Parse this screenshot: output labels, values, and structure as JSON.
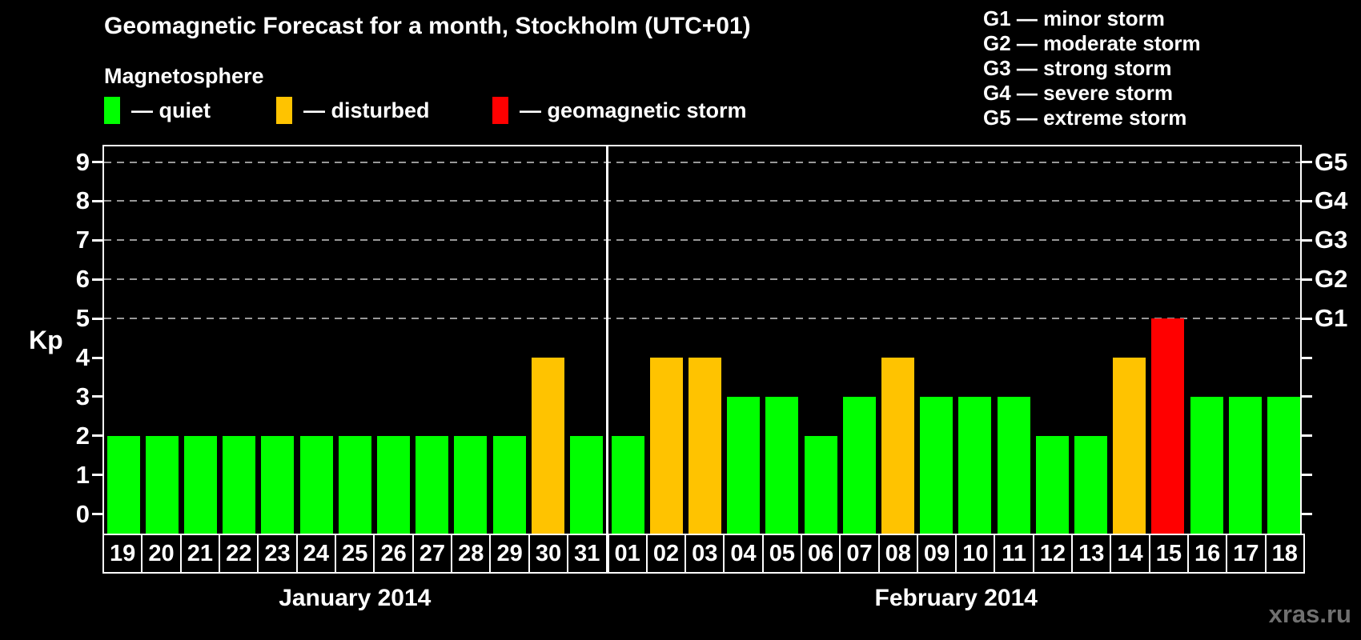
{
  "title": "Geomagnetic Forecast for a month, Stockholm (UTC+01)",
  "legend": {
    "title": "Magnetosphere",
    "items": [
      {
        "name": "quiet",
        "label": "— quiet",
        "color": "#00FF00"
      },
      {
        "name": "disturbed",
        "label": "— disturbed",
        "color": "#FFC300"
      },
      {
        "name": "storm",
        "label": "— geomagnetic storm",
        "color": "#FF0000"
      }
    ]
  },
  "g_legend": [
    "G1 — minor storm",
    "G2 — moderate storm",
    "G3 — strong storm",
    "G4 — severe storm",
    "G5 — extreme storm"
  ],
  "watermark": "xras.ru",
  "chart_data": {
    "type": "bar",
    "title": "Geomagnetic Forecast for a month, Stockholm (UTC+01)",
    "ylabel": "Kp",
    "ylim": [
      -0.5,
      9.4
    ],
    "yticks": [
      0,
      1,
      2,
      3,
      4,
      5,
      6,
      7,
      8,
      9
    ],
    "gridlines_at_kp": [
      5,
      6,
      7,
      8,
      9
    ],
    "grid": "dashed-horizontal-at-storm-levels",
    "legend_position": "top",
    "right_axis": [
      {
        "label": "G1",
        "kp": 5
      },
      {
        "label": "G2",
        "kp": 6
      },
      {
        "label": "G3",
        "kp": 7
      },
      {
        "label": "G4",
        "kp": 8
      },
      {
        "label": "G5",
        "kp": 9
      }
    ],
    "level_colors": {
      "quiet": "#00FF00",
      "disturbed": "#FFC300",
      "storm": "#FF0000"
    },
    "groups": [
      {
        "month": "January 2014",
        "bars": [
          {
            "day": "19",
            "kp": 2,
            "level": "quiet"
          },
          {
            "day": "20",
            "kp": 2,
            "level": "quiet"
          },
          {
            "day": "21",
            "kp": 2,
            "level": "quiet"
          },
          {
            "day": "22",
            "kp": 2,
            "level": "quiet"
          },
          {
            "day": "23",
            "kp": 2,
            "level": "quiet"
          },
          {
            "day": "24",
            "kp": 2,
            "level": "quiet"
          },
          {
            "day": "25",
            "kp": 2,
            "level": "quiet"
          },
          {
            "day": "26",
            "kp": 2,
            "level": "quiet"
          },
          {
            "day": "27",
            "kp": 2,
            "level": "quiet"
          },
          {
            "day": "28",
            "kp": 2,
            "level": "quiet"
          },
          {
            "day": "29",
            "kp": 2,
            "level": "quiet"
          },
          {
            "day": "30",
            "kp": 4,
            "level": "disturbed"
          },
          {
            "day": "31",
            "kp": 2,
            "level": "quiet"
          }
        ]
      },
      {
        "month": "February 2014",
        "bars": [
          {
            "day": "01",
            "kp": 2,
            "level": "quiet"
          },
          {
            "day": "02",
            "kp": 4,
            "level": "disturbed"
          },
          {
            "day": "03",
            "kp": 4,
            "level": "disturbed"
          },
          {
            "day": "04",
            "kp": 3,
            "level": "quiet"
          },
          {
            "day": "05",
            "kp": 3,
            "level": "quiet"
          },
          {
            "day": "06",
            "kp": 2,
            "level": "quiet"
          },
          {
            "day": "07",
            "kp": 3,
            "level": "quiet"
          },
          {
            "day": "08",
            "kp": 4,
            "level": "disturbed"
          },
          {
            "day": "09",
            "kp": 3,
            "level": "quiet"
          },
          {
            "day": "10",
            "kp": 3,
            "level": "quiet"
          },
          {
            "day": "11",
            "kp": 3,
            "level": "quiet"
          },
          {
            "day": "12",
            "kp": 2,
            "level": "quiet"
          },
          {
            "day": "13",
            "kp": 2,
            "level": "quiet"
          },
          {
            "day": "14",
            "kp": 4,
            "level": "disturbed"
          },
          {
            "day": "15",
            "kp": 5,
            "level": "storm"
          },
          {
            "day": "16",
            "kp": 3,
            "level": "quiet"
          },
          {
            "day": "17",
            "kp": 3,
            "level": "quiet"
          },
          {
            "day": "18",
            "kp": 3,
            "level": "quiet"
          }
        ]
      }
    ]
  }
}
